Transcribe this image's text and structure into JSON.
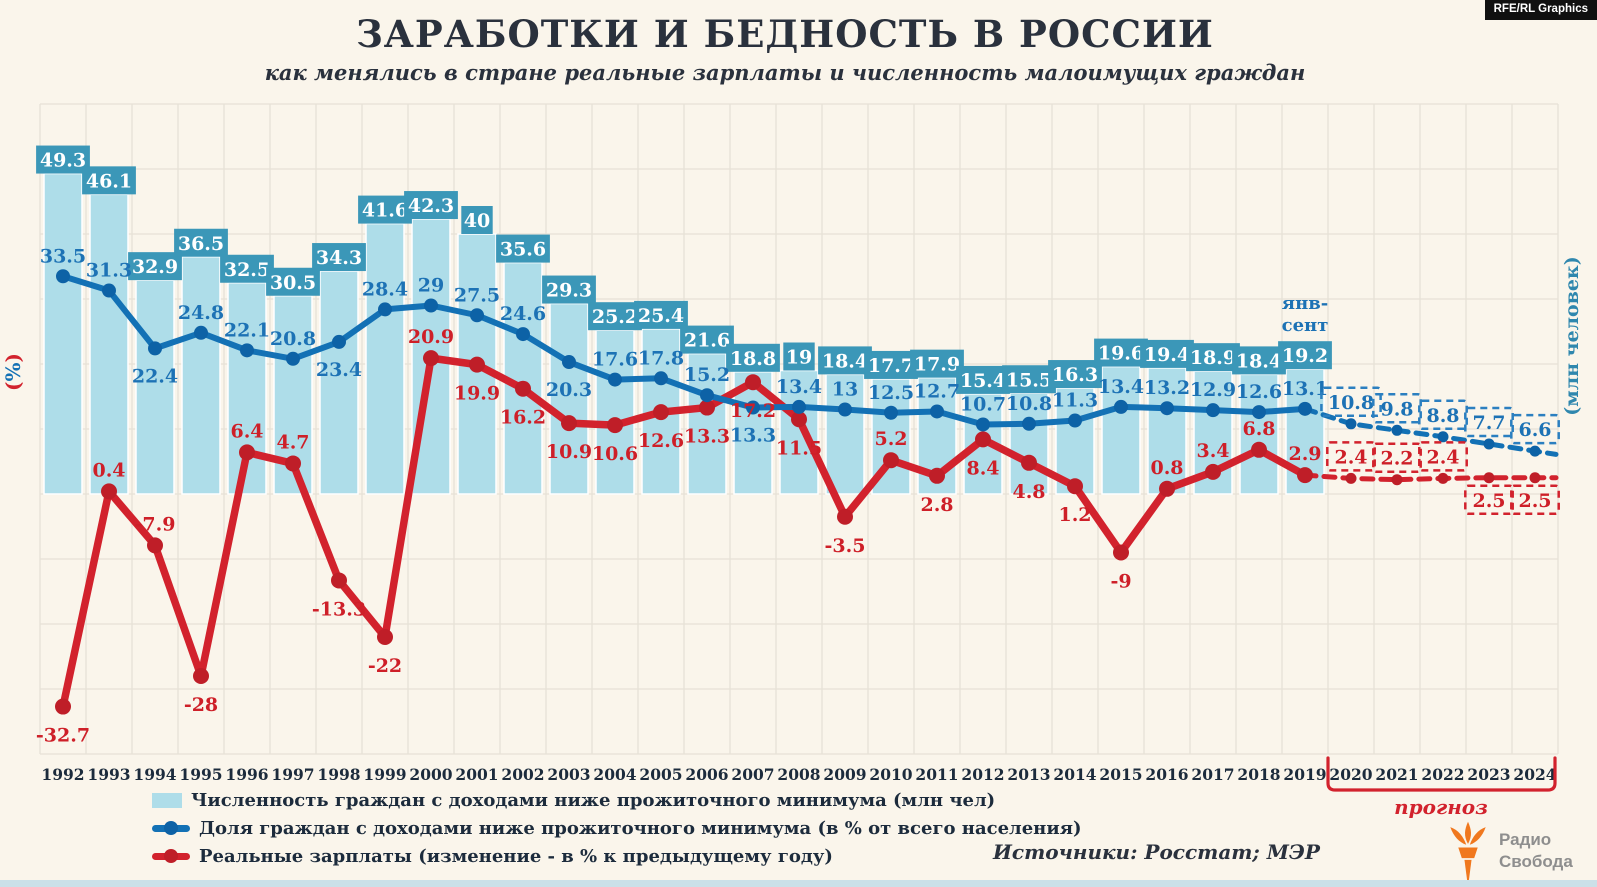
{
  "badge": "RFE/RL Graphics",
  "title": "ЗАРАБОТКИ И БЕДНОСТЬ В РОССИИ",
  "subtitle": "как менялись в стране реальные зарплаты и численность малоимущих граждан",
  "axes": {
    "left_label_open": "(",
    "left_label_symbol": "%",
    "left_label_close": ")",
    "right_label": "(млн человек)"
  },
  "colors": {
    "background": "#FAF5EB",
    "grid": "#E6E1D6",
    "bar": "#AEDDE9",
    "bar_box": "#3B97B8",
    "bar_box_text": "#FFFFFF",
    "blue_line": "#1371B5",
    "blue_dot": "#0D62A6",
    "blue_label": "#1D72B5",
    "red_line": "#D2222D",
    "red_dot": "#BF1E28",
    "red_label": "#CE1F28",
    "year_text": "#1C2B3C",
    "forecast_blue_border": "#2B7FC0",
    "bracket": "#D2222D",
    "axis_right": "#2F87AE",
    "title_text": "#2A313D"
  },
  "chart_data": {
    "type": "bar+line",
    "years": [
      1992,
      1993,
      1994,
      1995,
      1996,
      1997,
      1998,
      1999,
      2000,
      2001,
      2002,
      2003,
      2004,
      2005,
      2006,
      2007,
      2008,
      2009,
      2010,
      2011,
      2012,
      2013,
      2014,
      2015,
      2016,
      2017,
      2018,
      2019,
      2020,
      2021,
      2022,
      2023,
      2024
    ],
    "forecast_years": [
      2020,
      2021,
      2022,
      2023,
      2024
    ],
    "forecast_label": "прогноз",
    "ylim": [
      -40,
      60
    ],
    "grid_step": 10,
    "bar_note": {
      "year_index": 27,
      "lines": [
        "янв-",
        "сент"
      ]
    },
    "series": [
      {
        "name": "Численность граждан с доходами ниже прожиточного минимума (млн чел)",
        "type": "bar",
        "values": [
          49.3,
          46.1,
          32.9,
          36.5,
          32.5,
          30.5,
          34.3,
          41.6,
          42.3,
          40,
          35.6,
          29.3,
          25.2,
          25.4,
          21.6,
          18.8,
          19,
          18.4,
          17.7,
          17.9,
          15.4,
          15.5,
          16.3,
          19.6,
          19.4,
          18.9,
          18.4,
          19.2
        ]
      },
      {
        "name": "Доля граждан с доходами ниже прожиточного минимума (в % от всего населения)",
        "type": "line",
        "values": [
          33.5,
          31.3,
          22.4,
          24.8,
          22.1,
          20.8,
          23.4,
          28.4,
          29,
          27.5,
          24.6,
          20.3,
          17.6,
          17.8,
          15.2,
          13.3,
          13.4,
          13,
          12.5,
          12.7,
          10.7,
          10.8,
          11.3,
          13.4,
          13.2,
          12.9,
          12.6,
          13.1
        ],
        "label_pos": [
          "a",
          "a",
          "b",
          "a",
          "a",
          "a",
          "b",
          "a",
          "a",
          "a",
          "a",
          "b",
          "a",
          "a",
          "a",
          "b",
          "a",
          "a",
          "a",
          "a",
          "a",
          "a",
          "a",
          "a",
          "a",
          "a",
          "a",
          "a"
        ],
        "forecast": [
          10.8,
          9.8,
          8.8,
          7.7,
          6.6
        ],
        "forecast_box_pos": [
          "a",
          "a",
          "a",
          "a",
          "a"
        ]
      },
      {
        "name": "Реальные зарплаты (изменение - в % к предыдущему году)",
        "type": "line",
        "values": [
          -32.7,
          0.4,
          -7.9,
          -28,
          6.4,
          4.7,
          -13.3,
          -22,
          20.9,
          19.9,
          16.2,
          10.9,
          10.6,
          12.6,
          13.3,
          17.2,
          11.5,
          -3.5,
          5.2,
          2.8,
          8.4,
          4.8,
          1.2,
          -9,
          0.8,
          3.4,
          6.8,
          2.9
        ],
        "label_pos": [
          "b",
          "a",
          "a",
          "b",
          "a",
          "a",
          "b",
          "b",
          "a",
          "b",
          "b",
          "b",
          "b",
          "b",
          "b",
          "b",
          "b",
          "b",
          "a",
          "b",
          "b",
          "b",
          "b",
          "b",
          "a",
          "a",
          "a",
          "a"
        ],
        "forecast": [
          2.4,
          2.2,
          2.4,
          2.5,
          2.5
        ],
        "forecast_box_pos": [
          "a",
          "a",
          "a",
          "b",
          "b"
        ]
      }
    ]
  },
  "legend": {
    "items": [
      {
        "label": "Численность граждан с доходами ниже прожиточного минимума (млн чел)"
      },
      {
        "label": "Доля граждан с доходами ниже прожиточного минимума (в % от всего населения)"
      },
      {
        "label": "Реальные зарплаты (изменение - в % к предыдущему году)"
      }
    ]
  },
  "source": "Источники: Росстат; МЭР",
  "logo": {
    "line1": "Радио",
    "line2": "Свобода"
  }
}
